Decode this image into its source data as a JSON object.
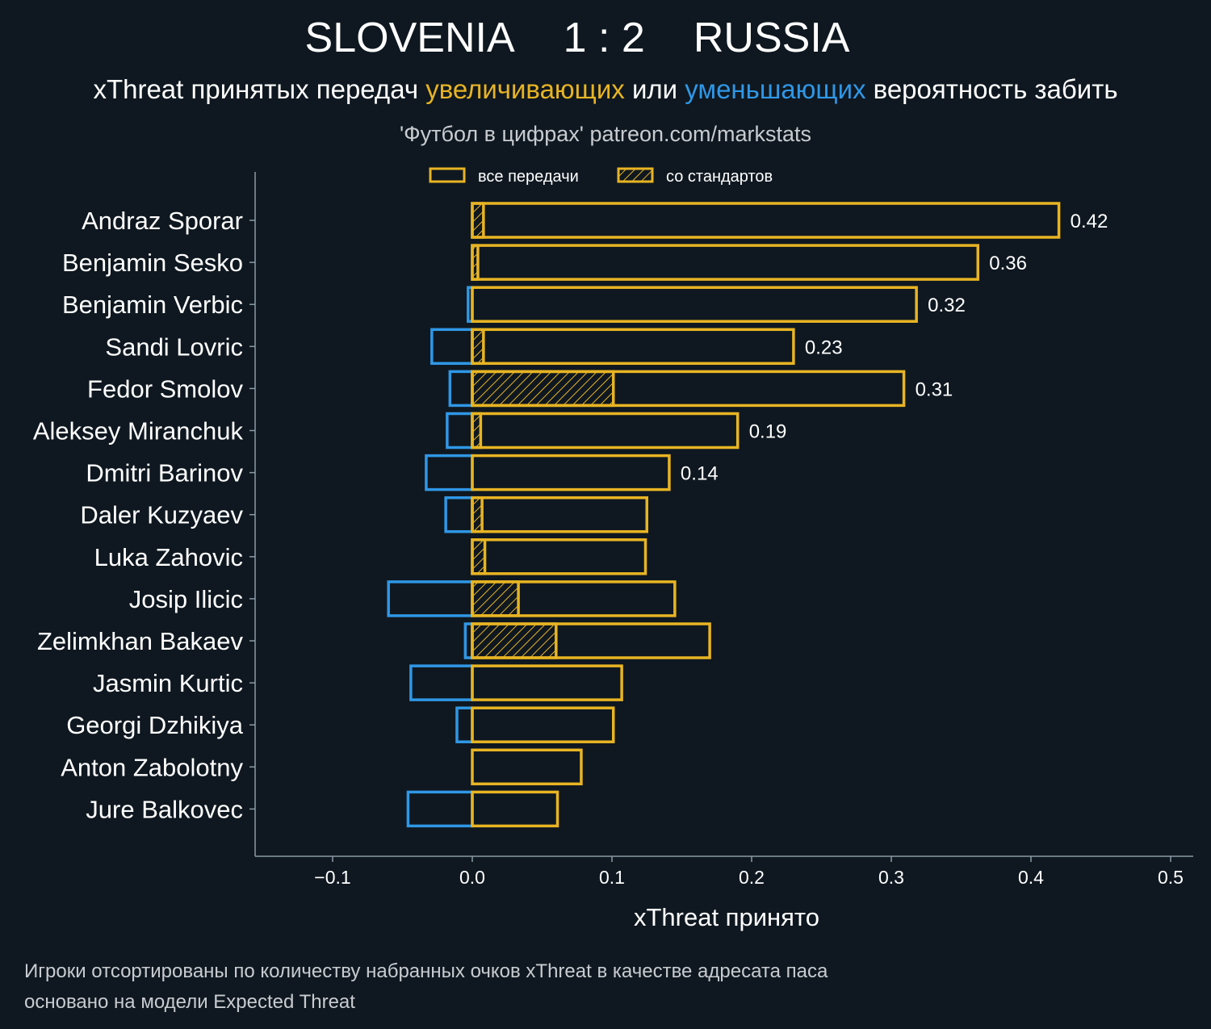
{
  "header": {
    "title_home": "SLOVENIA",
    "title_score": "1 : 2",
    "title_away": "RUSSIA",
    "subtitle_pre": "xThreat принятых передач ",
    "subtitle_inc": "увеличивающих",
    "subtitle_mid": " или ",
    "subtitle_dec": "уменьшающих",
    "subtitle_post": " вероятность забить",
    "source": "'Футбол в цифрах' patreon.com/markstats"
  },
  "legend": {
    "all_passes": "все передачи",
    "set_pieces": "со стандартов"
  },
  "footer": {
    "line1": "Игроки отсортированы по количеству набранных очков xThreat в качестве адресата паса",
    "line2": "основано на модели Expected Threat"
  },
  "colors": {
    "background": "#0f1820",
    "positive": "#e8b423",
    "negative": "#2f97e6",
    "axis": "#8a9aa6",
    "text": "#ffffff",
    "muted": "#c8ccd0"
  },
  "chart_data": {
    "type": "bar",
    "orientation": "horizontal",
    "xlabel": "xThreat принято",
    "xlim": [
      -0.155,
      0.515
    ],
    "xticks": [
      -0.1,
      0.0,
      0.1,
      0.2,
      0.3,
      0.4,
      0.5
    ],
    "xtick_labels": [
      "−0.1",
      "0.0",
      "0.1",
      "0.2",
      "0.3",
      "0.4",
      "0.5"
    ],
    "categories": [
      "Andraz Sporar",
      "Benjamin Sesko",
      "Benjamin Verbic",
      "Sandi Lovric",
      "Fedor Smolov",
      "Aleksey Miranchuk",
      "Dmitri Barinov",
      "Daler Kuzyaev",
      "Luka Zahovic",
      "Josip Ilicic",
      "Zelimkhan Bakaev",
      "Jasmin Kurtic",
      "Georgi Dzhikiya",
      "Anton Zabolotny",
      "Jure Balkovec"
    ],
    "series": [
      {
        "name": "positive",
        "values": [
          0.42,
          0.362,
          0.318,
          0.23,
          0.309,
          0.19,
          0.141,
          0.125,
          0.124,
          0.145,
          0.17,
          0.107,
          0.101,
          0.078,
          0.061
        ]
      },
      {
        "name": "negative",
        "values": [
          0.0,
          0.0,
          -0.003,
          -0.029,
          -0.016,
          -0.018,
          -0.033,
          -0.019,
          0.0,
          -0.06,
          -0.005,
          -0.044,
          -0.011,
          0.0,
          -0.046
        ]
      },
      {
        "name": "set_pieces",
        "values": [
          0.008,
          0.004,
          0.0,
          0.008,
          0.101,
          0.006,
          0.0,
          0.007,
          0.009,
          0.033,
          0.06,
          0.0,
          0.0,
          0.0,
          0.0
        ]
      }
    ],
    "value_labels": [
      "0.42",
      "0.36",
      "0.32",
      "0.23",
      "0.31",
      "0.19",
      "0.14",
      "",
      "",
      "",
      "",
      "",
      "",
      "",
      ""
    ]
  }
}
